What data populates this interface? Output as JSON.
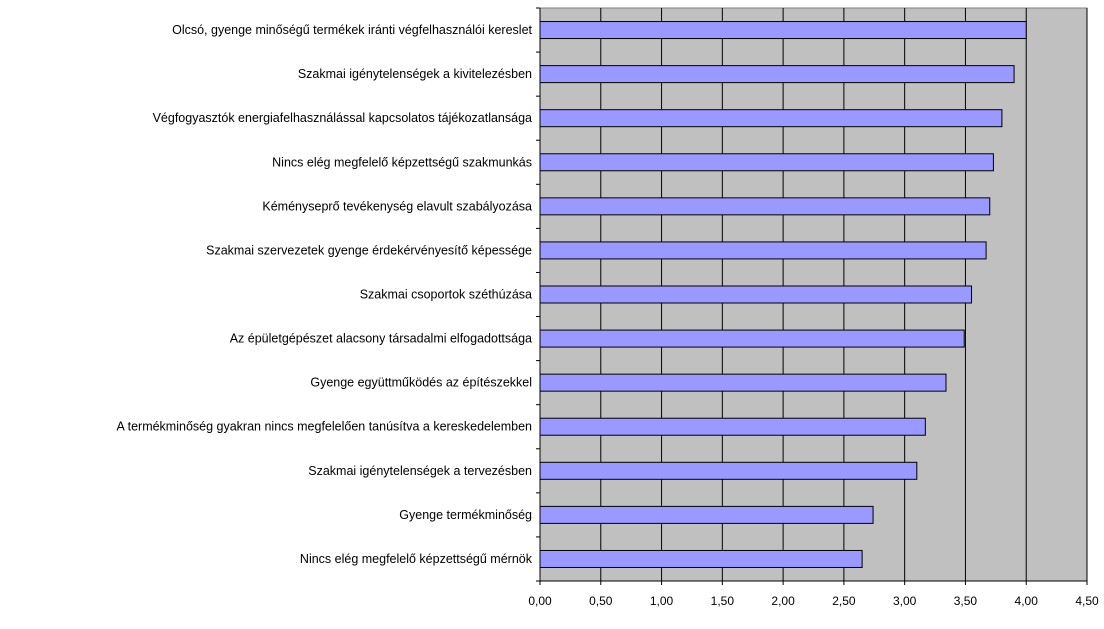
{
  "chart_data": {
    "type": "bar",
    "orientation": "horizontal",
    "categories": [
      "Olcsó, gyenge minőségű termékek iránti végfelhasználói kereslet",
      "Szakmai igénytelenségek a kivitelezésben",
      "Végfogyasztók energiafelhasználással kapcsolatos tájékozatlansága",
      "Nincs elég megfelelő képzettségű szakmunkás",
      "Kéményseprő tevékenység elavult szabályozása",
      "Szakmai szervezetek gyenge érdekérvényesítő képessége",
      "Szakmai csoportok széthúzása",
      "Az épületgépészet alacsony társadalmi elfogadottsága",
      "Gyenge együttműködés az építészekkel",
      "A termékminőség gyakran nincs megfelelően tanúsítva a kereskedelemben",
      "Szakmai igénytelenségek a tervezésben",
      "Gyenge termékminőség",
      "Nincs elég megfelelő képzettségű mérnök"
    ],
    "values": [
      4.0,
      3.9,
      3.8,
      3.73,
      3.7,
      3.67,
      3.55,
      3.49,
      3.34,
      3.17,
      3.1,
      2.74,
      2.65
    ],
    "xlim": [
      0,
      4.5
    ],
    "ticks": [
      "0,00",
      "0,50",
      "1,00",
      "1,50",
      "2,00",
      "2,50",
      "3,00",
      "3,50",
      "4,00",
      "4,50"
    ],
    "tick_values": [
      0,
      0.5,
      1,
      1.5,
      2,
      2.5,
      3,
      3.5,
      4,
      4.5
    ],
    "grid": true,
    "colors": {
      "plot_background": "#c0c0c0",
      "bar_fill": "#9999ff",
      "bar_stroke": "#000000",
      "grid": "#000000"
    }
  }
}
